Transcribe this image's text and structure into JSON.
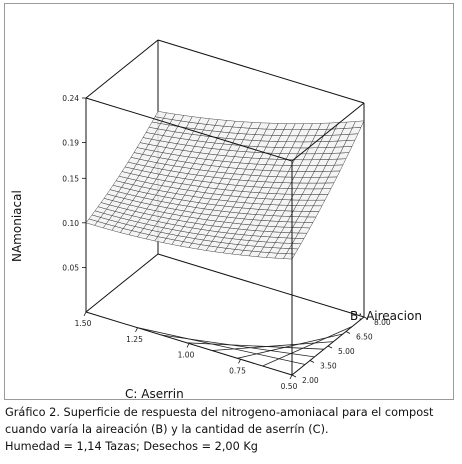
{
  "chart_data": {
    "type": "surface3d",
    "zlabel": "NAmoniacal",
    "ylabel": "B: Aireacion",
    "xlabel": "C: Aserrin",
    "x_ticks": [
      "1.50",
      "1.25",
      "1.00",
      "0.75",
      "0.50"
    ],
    "y_ticks": [
      "2.00",
      "3.50",
      "5.00",
      "6.50",
      "8.00"
    ],
    "z_ticks": [
      "0.05",
      "0.10",
      "0.15",
      "0.19",
      "0.24"
    ],
    "xlim": [
      0.5,
      1.5
    ],
    "ylim": [
      2.0,
      8.0
    ],
    "zlim": [
      0.0,
      0.24
    ],
    "corner_values": [
      {
        "aserrin": 1.5,
        "aireacion": 2.0,
        "namoniacal": 0.1
      },
      {
        "aserrin": 1.5,
        "aireacion": 8.0,
        "namoniacal": 0.16
      },
      {
        "aserrin": 0.5,
        "aireacion": 2.0,
        "namoniacal": 0.13
      },
      {
        "aserrin": 0.5,
        "aireacion": 8.0,
        "namoniacal": 0.22
      }
    ],
    "contour_count": 6
  },
  "caption": {
    "line1": "Gráfico 2.  Superficie de respuesta del nitrogeno-amoniacal para el compost",
    "line2": "cuando varía la aireación (B) y la cantidad de aserrín (C).",
    "line3": "Humedad = 1,14 Tazas; Desechos = 2,00 Kg"
  }
}
